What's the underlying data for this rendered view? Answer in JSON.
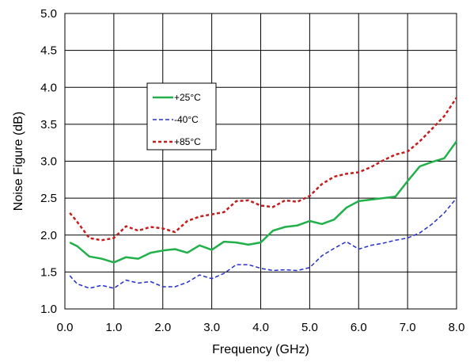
{
  "chart_data": {
    "type": "line",
    "title": "",
    "xlabel": "Frequency (GHz)",
    "ylabel": "Noise Figure (dB)",
    "xlim": [
      0,
      8
    ],
    "ylim": [
      1.0,
      5.0
    ],
    "x_ticks": [
      "0.0",
      "1.0",
      "2.0",
      "3.0",
      "4.0",
      "5.0",
      "6.0",
      "7.0",
      "8.0"
    ],
    "y_ticks": [
      "1.0",
      "1.5",
      "2.0",
      "2.5",
      "3.0",
      "3.5",
      "4.0",
      "4.5",
      "5.0"
    ],
    "grid": true,
    "legend_position": "upper-left",
    "series": [
      {
        "name": "+25°C",
        "color": "#22b04b",
        "style": "solid",
        "x": [
          0.1,
          0.25,
          0.5,
          0.75,
          1.0,
          1.25,
          1.5,
          1.75,
          2.0,
          2.25,
          2.5,
          2.75,
          3.0,
          3.25,
          3.5,
          3.75,
          4.0,
          4.25,
          4.5,
          4.75,
          5.0,
          5.25,
          5.5,
          5.75,
          6.0,
          6.25,
          6.5,
          6.75,
          7.0,
          7.25,
          7.5,
          7.75,
          8.0
        ],
        "y": [
          1.9,
          1.85,
          1.71,
          1.68,
          1.63,
          1.7,
          1.68,
          1.76,
          1.79,
          1.81,
          1.76,
          1.86,
          1.8,
          1.91,
          1.9,
          1.87,
          1.9,
          2.06,
          2.11,
          2.13,
          2.19,
          2.15,
          2.21,
          2.37,
          2.46,
          2.48,
          2.5,
          2.52,
          2.73,
          2.93,
          2.99,
          3.04,
          3.27
        ]
      },
      {
        "name": "-40°C",
        "color": "#2431c9",
        "style": "dashed",
        "x": [
          0.1,
          0.25,
          0.5,
          0.75,
          1.0,
          1.25,
          1.5,
          1.75,
          2.0,
          2.25,
          2.5,
          2.75,
          3.0,
          3.25,
          3.5,
          3.75,
          4.0,
          4.25,
          4.5,
          4.75,
          5.0,
          5.25,
          5.5,
          5.75,
          6.0,
          6.25,
          6.5,
          6.75,
          7.0,
          7.25,
          7.5,
          7.75,
          8.0
        ],
        "y": [
          1.45,
          1.34,
          1.28,
          1.32,
          1.28,
          1.39,
          1.35,
          1.37,
          1.3,
          1.3,
          1.36,
          1.46,
          1.41,
          1.48,
          1.6,
          1.6,
          1.55,
          1.52,
          1.53,
          1.52,
          1.56,
          1.72,
          1.82,
          1.91,
          1.81,
          1.86,
          1.89,
          1.93,
          1.96,
          2.03,
          2.15,
          2.3,
          2.5
        ]
      },
      {
        "name": "+85°C",
        "color": "#c41d1d",
        "style": "dashed",
        "x": [
          0.1,
          0.25,
          0.5,
          0.75,
          1.0,
          1.25,
          1.5,
          1.75,
          2.0,
          2.25,
          2.5,
          2.75,
          3.0,
          3.25,
          3.5,
          3.75,
          4.0,
          4.25,
          4.5,
          4.75,
          5.0,
          5.25,
          5.5,
          5.75,
          6.0,
          6.25,
          6.5,
          6.75,
          7.0,
          7.25,
          7.5,
          7.75,
          8.0
        ],
        "y": [
          2.3,
          2.18,
          1.96,
          1.93,
          1.96,
          2.12,
          2.06,
          2.11,
          2.09,
          2.04,
          2.19,
          2.25,
          2.28,
          2.31,
          2.46,
          2.47,
          2.4,
          2.38,
          2.47,
          2.45,
          2.53,
          2.69,
          2.79,
          2.83,
          2.85,
          2.92,
          3.01,
          3.09,
          3.13,
          3.27,
          3.44,
          3.61,
          3.86
        ]
      }
    ]
  }
}
